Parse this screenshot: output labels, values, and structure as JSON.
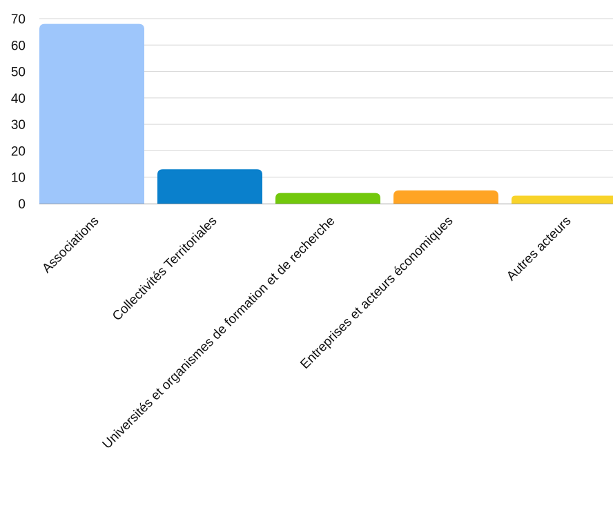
{
  "chart_data": {
    "type": "bar",
    "categories": [
      "Associations",
      "Collectivités Territoriales",
      "Universités et organismes de formation et de recherche",
      "Entreprises et acteurs économiques",
      "Autres acteurs"
    ],
    "values": [
      68,
      13,
      4,
      5,
      3
    ],
    "colors": [
      "#9ec6fb",
      "#0a80cc",
      "#72c80c",
      "#ffa424",
      "#f8d32a"
    ],
    "ylim": [
      0,
      70
    ],
    "yticks": [
      0,
      10,
      20,
      30,
      40,
      50,
      60,
      70
    ],
    "grid": true,
    "legend": "none",
    "title": "",
    "xlabel": "",
    "ylabel": ""
  }
}
